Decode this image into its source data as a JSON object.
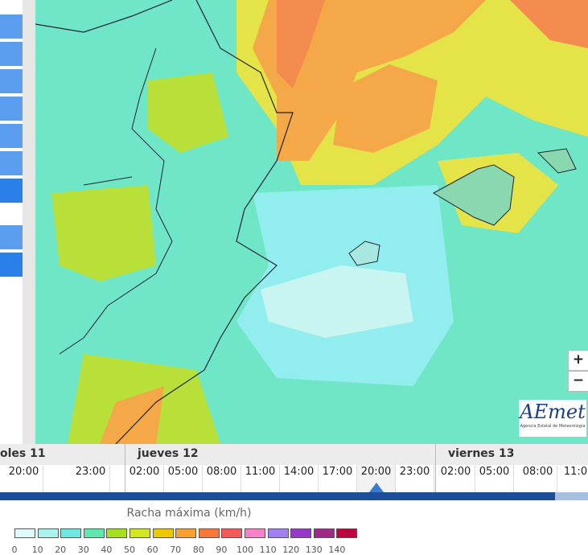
{
  "zoom": {
    "in": "+",
    "out": "−"
  },
  "logo": {
    "name": "AEmet",
    "subtitle": "Agencia Estatal de Meteorología"
  },
  "timeline": {
    "days": [
      "oles 11",
      "jueves 12",
      "viernes 13"
    ],
    "times": [
      "20:00",
      "23:00",
      "02:00",
      "05:00",
      "08:00",
      "11:00",
      "14:00",
      "17:00",
      "20:00",
      "23:00",
      "02:00",
      "05:00",
      "08:00",
      "11:0"
    ],
    "selected": 8
  },
  "legend": {
    "title": "Racha máxima (km/h)",
    "labels": [
      0,
      10,
      20,
      30,
      40,
      50,
      60,
      70,
      80,
      90,
      100,
      110,
      120,
      130,
      140
    ],
    "colors": [
      "#e0fbfb",
      "#a8f5f0",
      "#6ee8e0",
      "#5ee8b0",
      "#a8e020",
      "#d4e820",
      "#f0c800",
      "#f8a030",
      "#f87838",
      "#f85858",
      "#f880c8",
      "#a080f0",
      "#9838c8",
      "#a02888",
      "#c00040"
    ]
  }
}
